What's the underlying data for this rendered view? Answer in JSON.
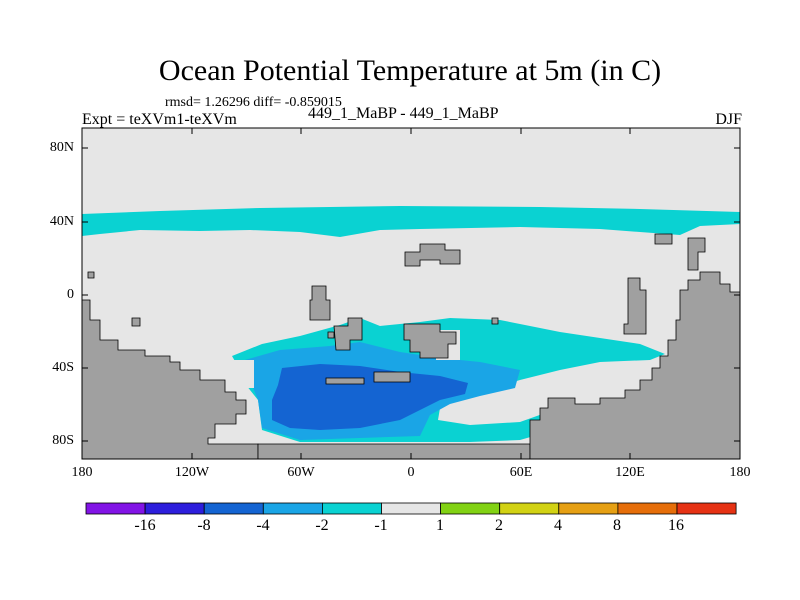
{
  "title": "Ocean Potential Temperature at 5m (in C)",
  "stats": "rmsd= 1.26296 diff= -0.859015",
  "experiment": "Expt = teXVm1-teXVm",
  "case": "449_1_MaBP - 449_1_MaBP",
  "season": "DJF",
  "map": {
    "lat_labels": [
      "80N",
      "40N",
      "0",
      "40S",
      "80S"
    ],
    "lon_labels": [
      "180",
      "120W",
      "60W",
      "0",
      "60E",
      "120E",
      "180"
    ],
    "colors": {
      "land": "#a0a0a0",
      "neutral": "#e6e6e6",
      "minus1_minus2": "#0ad2d2",
      "minus2_minus4": "#1aa5e6",
      "minus4_minus8": "#1464d2",
      "coastline": "#000000"
    }
  },
  "colorbar": {
    "labels": [
      "-16",
      "-8",
      "-4",
      "-2",
      "-1",
      "1",
      "2",
      "4",
      "8",
      "16"
    ],
    "colors": [
      "#8214e6",
      "#2d1edc",
      "#1464d2",
      "#1aa5e6",
      "#0ad2d2",
      "#e6e6e6",
      "#82d214",
      "#d2d214",
      "#e6a014",
      "#e66e0a",
      "#e63214"
    ]
  }
}
